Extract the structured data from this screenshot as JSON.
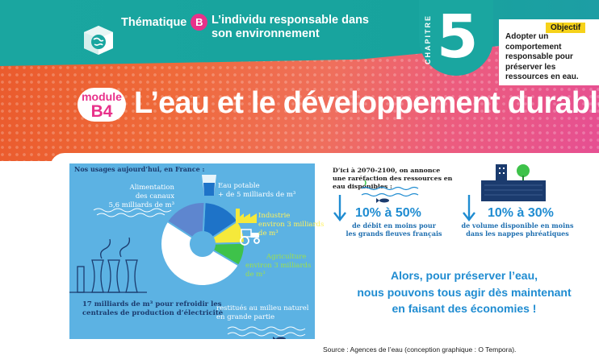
{
  "header": {
    "thematique_label": "Thématique",
    "thematique_letter": "B",
    "thematique_title": "L’individu responsable dans son environnement",
    "chapter_word": "CHAPITRE",
    "chapter_number": "5",
    "objectif_label": "Objectif",
    "objectif_text": "Adopter un comportement responsable pour préserver les ressources en eau.",
    "module_word": "module",
    "module_code": "B4",
    "title": "L’eau et le développement durable"
  },
  "infographic": {
    "title": "Nos usages aujourd’hui, en France :",
    "segments": [
      {
        "name": "Eau potable",
        "value": 5,
        "color": "#1e73c8"
      },
      {
        "name": "Industrie",
        "value": 3,
        "color": "#f5e93a"
      },
      {
        "name": "Agriculture",
        "value": 3,
        "color": "#3ec24a"
      },
      {
        "name": "Centrales de production d’électricité",
        "value": 17,
        "color": "#ffffff"
      },
      {
        "name": "Alimentation des canaux",
        "value": 5.6,
        "color": "#5e86cf"
      }
    ],
    "labels": {
      "canaux_line1": "Alimentation",
      "canaux_line2": "des canaux",
      "canaux_line3": "5,6 milliards de m³",
      "potable_line1": "Eau potable",
      "potable_line2": "+ de 5 milliards de m³",
      "industrie_line1": "Industrie",
      "industrie_line2": "environ 3 milliards",
      "industrie_line3": "de m³",
      "agri_line1": "Agriculture",
      "agri_line2": "environ 3 milliards",
      "agri_line3": "de m³",
      "centrales_line1": "17 milliards de m³ pour refroidir les",
      "centrales_line2": "centrales de production d’électricité",
      "restitues_line1": "restitués au milieu naturel",
      "restitues_line2": "en grande partie"
    }
  },
  "forecast": {
    "title": "D’ici à 2070-2100, on annonce une raréfaction des ressources en eau disponibles :",
    "left_pct": "10% à 50%",
    "left_desc_line1": "de débit en moins pour",
    "left_desc_line2": "les grands fleuves français",
    "right_pct": "10% à 30%",
    "right_desc_line1": "de volume disponible en moins",
    "right_desc_line2": "dans les nappes phréatiques"
  },
  "cta": {
    "line1": "Alors, pour préserver l’eau,",
    "line2": "nous pouvons tous agir dès maintenant",
    "line3": "en faisant des économies !"
  },
  "source": "Source : Agences de l’eau (conception graphique : O Tempora)."
}
